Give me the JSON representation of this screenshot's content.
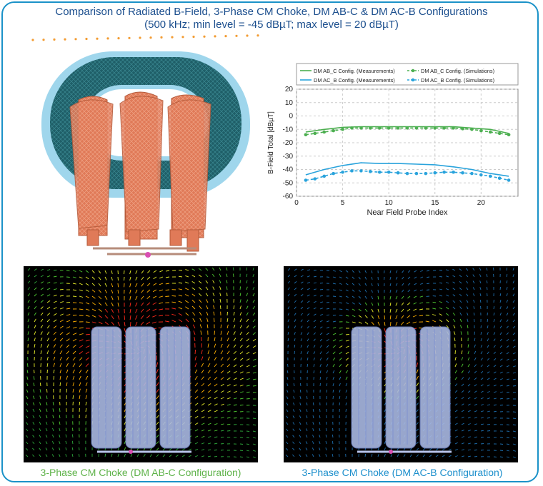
{
  "title": {
    "line1": "Comparison of Radiated B-Field, 3-Phase CM Choke, DM AB-C &  DM AC-B Configurations",
    "line2": "(500 kHz; min level = -45 dBµT; max level = 20 dBµT)"
  },
  "colors": {
    "accent": "#1b92c8",
    "green": "#4caf50",
    "blue": "#29a3dc",
    "dot_orange": "#f39c33"
  },
  "chart_data": {
    "type": "line",
    "xlabel": "Near Field Probe Index",
    "ylabel": "B-Field Total [dBµT]",
    "xlim": [
      0,
      24
    ],
    "ylim": [
      -60,
      20
    ],
    "xticks": [
      0,
      5,
      10,
      15,
      20
    ],
    "yticks": [
      20,
      10,
      0,
      -10,
      -20,
      -30,
      -40,
      -50,
      -60
    ],
    "grid": true,
    "legend_position": "top",
    "series": [
      {
        "name": "DM AB_C Config. (Measurements)",
        "style": "solid",
        "color": "#4caf50",
        "x": [
          1,
          3,
          5,
          7,
          9,
          11,
          13,
          15,
          17,
          19,
          21,
          23
        ],
        "y": [
          -12,
          -10,
          -8.5,
          -8,
          -8,
          -8,
          -8,
          -8,
          -8,
          -9,
          -10,
          -13
        ]
      },
      {
        "name": "DM AC_B Config. (Measurements)",
        "style": "solid",
        "color": "#29a3dc",
        "x": [
          1,
          3,
          5,
          7,
          9,
          11,
          13,
          15,
          17,
          19,
          21,
          23
        ],
        "y": [
          -44,
          -40,
          -37,
          -35,
          -35.5,
          -35.5,
          -36,
          -36.5,
          -38,
          -40,
          -43,
          -45
        ]
      },
      {
        "name": "DM AB_C Config. (Simulations)",
        "style": "dashed",
        "color": "#4caf50",
        "x": [
          1,
          2,
          3,
          4,
          5,
          6,
          7,
          8,
          9,
          10,
          11,
          12,
          13,
          14,
          15,
          16,
          17,
          18,
          19,
          20,
          21,
          22,
          23
        ],
        "y": [
          -14,
          -13,
          -12,
          -11,
          -10,
          -9,
          -9,
          -9,
          -9,
          -9,
          -9,
          -9,
          -9,
          -9,
          -9,
          -9,
          -9,
          -9.5,
          -10,
          -11,
          -12,
          -13,
          -14
        ]
      },
      {
        "name": "DM AC_B Config. (Simulations)",
        "style": "dashed",
        "color": "#29a3dc",
        "x": [
          1,
          2,
          3,
          4,
          5,
          6,
          7,
          8,
          9,
          10,
          11,
          12,
          13,
          14,
          15,
          16,
          17,
          18,
          19,
          20,
          21,
          22,
          23
        ],
        "y": [
          -48,
          -47,
          -45,
          -43,
          -42,
          -41,
          -41,
          -41.5,
          -42,
          -42,
          -42.5,
          -43,
          -43,
          -43,
          -42.5,
          -42,
          -42,
          -42.5,
          -43,
          -44,
          -45,
          -46.5,
          -48
        ]
      }
    ]
  },
  "captions": {
    "left": "3-Phase CM Choke (DM AB-C Configuration)",
    "right": "3-Phase CM Choke (DM AC-B Configuration)"
  }
}
